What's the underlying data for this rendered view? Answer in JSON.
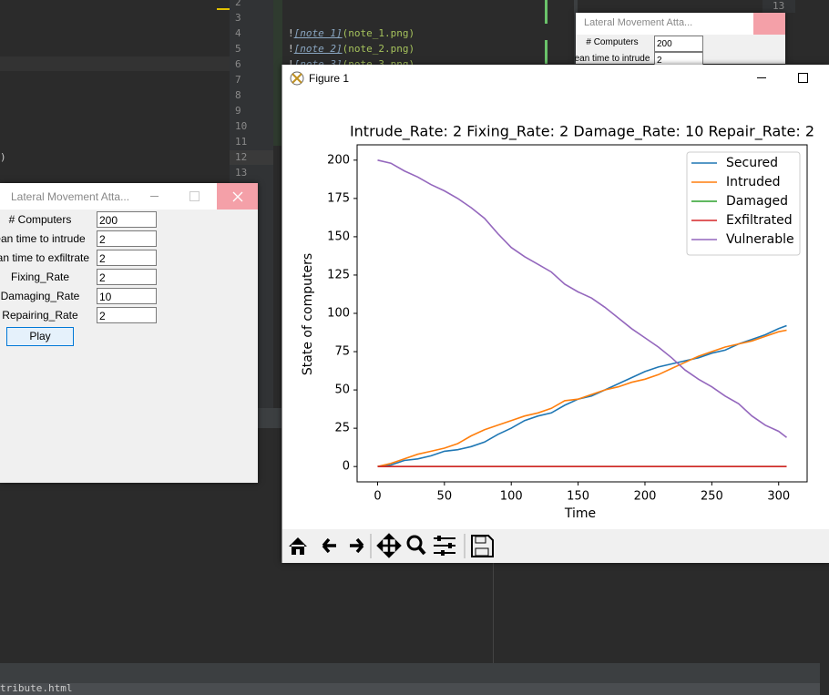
{
  "editor": {
    "line_numbers": [
      "2",
      "3",
      "4",
      "5",
      "6",
      "7",
      "8",
      "9",
      "10",
      "11",
      "12",
      "13"
    ],
    "code": [
      {
        "bang": "!",
        "link": "[note 1]",
        "url": "(note_1.png)"
      },
      {
        "bang": "!",
        "link": "[note 2]",
        "url": "(note_2.png)"
      },
      {
        "bang": "!",
        "link": "[note 3]",
        "url": "(note_3.png)"
      }
    ],
    "stray": ")",
    "corner_line": "13",
    "status": "tribute.html"
  },
  "dialog": {
    "title": "Lateral Movement Atta...",
    "fields": [
      {
        "label": "# Computers",
        "value": "200"
      },
      {
        "label": "ean time to intrude",
        "value": "2"
      },
      {
        "label": "ean time to exfiltrate",
        "value": "2"
      },
      {
        "label": "Fixing_Rate",
        "value": "2"
      },
      {
        "label": "Damaging_Rate",
        "value": "10"
      },
      {
        "label": "Repairing_Rate",
        "value": "2"
      }
    ],
    "button": "Play"
  },
  "dialog_back": {
    "title": "Lateral Movement Atta...",
    "fields": [
      {
        "label": "# Computers",
        "value": "200"
      },
      {
        "label": "ean time to intrude",
        "value": "2"
      }
    ]
  },
  "figure_window": {
    "title": "Figure 1"
  },
  "chart_data": {
    "type": "line",
    "title": "Intrude_Rate: 2 Fixing_Rate: 2 Damage_Rate: 10 Repair_Rate: 2",
    "x_label": "Time",
    "y_label": "State of computers",
    "x": [
      0,
      10,
      20,
      30,
      40,
      50,
      60,
      70,
      80,
      90,
      100,
      110,
      120,
      130,
      140,
      150,
      160,
      170,
      180,
      190,
      200,
      210,
      220,
      230,
      240,
      250,
      260,
      270,
      280,
      290,
      300,
      306
    ],
    "series": [
      {
        "name": "Secured",
        "color": "#1f77b4",
        "values": [
          0,
          1,
          4,
          5,
          7,
          10,
          11,
          13,
          16,
          21,
          25,
          30,
          33,
          35,
          40,
          44,
          46,
          50,
          54,
          58,
          62,
          65,
          67,
          69,
          71,
          74,
          76,
          80,
          83,
          86,
          90,
          92
        ]
      },
      {
        "name": "Intruded",
        "color": "#ff7f0e",
        "values": [
          0,
          2,
          5,
          8,
          10,
          12,
          15,
          20,
          24,
          27,
          30,
          33,
          35,
          38,
          43,
          44,
          47,
          50,
          52,
          55,
          57,
          60,
          64,
          68,
          72,
          75,
          78,
          80,
          82,
          85,
          88,
          89
        ]
      },
      {
        "name": "Damaged",
        "color": "#2ca02c",
        "values": [
          0,
          0,
          0,
          0,
          0,
          0,
          0,
          0,
          0,
          0,
          0,
          0,
          0,
          0,
          0,
          0,
          0,
          0,
          0,
          0,
          0,
          0,
          0,
          0,
          0,
          0,
          0,
          0,
          0,
          0,
          0,
          0
        ]
      },
      {
        "name": "Exfiltrated",
        "color": "#d62728",
        "values": [
          0,
          0,
          0,
          0,
          0,
          0,
          0,
          0,
          0,
          0,
          0,
          0,
          0,
          0,
          0,
          0,
          0,
          0,
          0,
          0,
          0,
          0,
          0,
          0,
          0,
          0,
          0,
          0,
          0,
          0,
          0,
          0
        ]
      },
      {
        "name": "Vulnerable",
        "color": "#9467bd",
        "values": [
          200,
          198,
          193,
          189,
          184,
          180,
          175,
          169,
          162,
          152,
          143,
          137,
          132,
          127,
          119,
          114,
          110,
          104,
          97,
          90,
          84,
          78,
          71,
          63,
          57,
          52,
          46,
          41,
          33,
          27,
          23,
          19
        ]
      }
    ],
    "xlim": [
      -15.3,
      321.3
    ],
    "ylim": [
      -10,
      210
    ],
    "xticks": [
      0,
      50,
      100,
      150,
      200,
      250,
      300
    ],
    "yticks": [
      0,
      25,
      50,
      75,
      100,
      125,
      150,
      175,
      200
    ],
    "grid": false,
    "legend": "upper right"
  }
}
